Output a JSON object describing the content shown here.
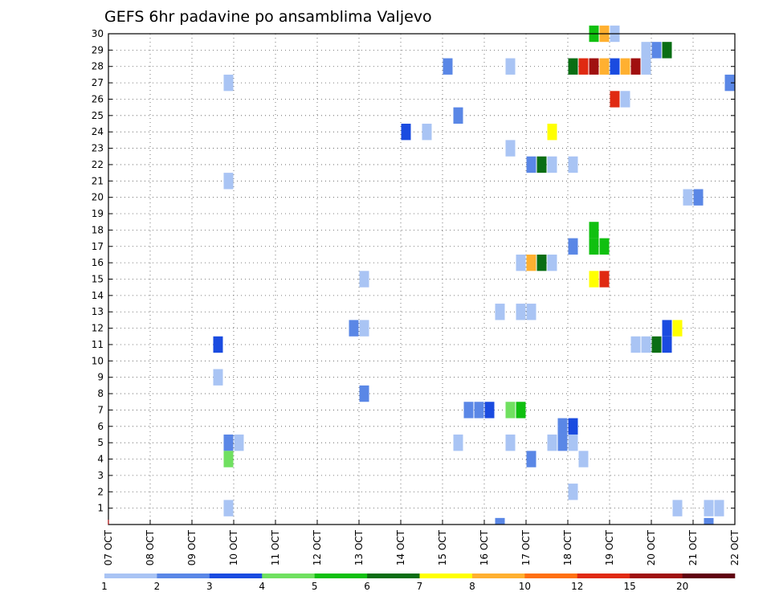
{
  "chart_data": {
    "type": "heatmap",
    "title": "GEFS 6hr padavine po ansamblima Valjevo",
    "x_tick_labels": [
      "07 OCT",
      "08 OCT",
      "09 OCT",
      "10 OCT",
      "11 OCT",
      "12 OCT",
      "13 OCT",
      "14 OCT",
      "15 OCT",
      "16 OCT",
      "17 OCT",
      "18 OCT",
      "19 OCT",
      "20 OCT",
      "21 OCT",
      "22 OCT"
    ],
    "x_range_days": [
      7,
      22
    ],
    "y_tick_labels": [
      "1",
      "2",
      "3",
      "4",
      "5",
      "6",
      "7",
      "8",
      "9",
      "10",
      "11",
      "12",
      "13",
      "14",
      "15",
      "16",
      "17",
      "18",
      "19",
      "20",
      "21",
      "22",
      "23",
      "24",
      "25",
      "26",
      "27",
      "28",
      "29",
      "30"
    ],
    "y_range": [
      0,
      30
    ],
    "grid": true,
    "colorbar": {
      "labels": [
        "1",
        "2",
        "3",
        "4",
        "5",
        "6",
        "7",
        "8",
        "10",
        "12",
        "15",
        "20"
      ],
      "colors": [
        "#a9c4f4",
        "#5a87e6",
        "#1a4be0",
        "#70e060",
        "#10c010",
        "#0a6e14",
        "#ffff00",
        "#ffb030",
        "#ff7010",
        "#e02a12",
        "#a01010",
        "#600010"
      ]
    },
    "cells_note": "each cell: [member, day_of_october (start of 6h step), color_index 1-12]",
    "cells": [
      [
        30,
        18.5,
        5
      ],
      [
        30,
        18.75,
        8
      ],
      [
        30,
        19.0,
        1
      ],
      [
        29,
        19.75,
        1
      ],
      [
        29,
        20.0,
        2
      ],
      [
        29,
        20.25,
        6
      ],
      [
        28,
        15.0,
        2
      ],
      [
        28,
        16.5,
        1
      ],
      [
        28,
        18.0,
        6
      ],
      [
        28,
        18.25,
        10
      ],
      [
        28,
        18.5,
        11
      ],
      [
        28,
        18.75,
        8
      ],
      [
        28,
        19.0,
        3
      ],
      [
        28,
        19.25,
        8
      ],
      [
        28,
        19.5,
        11
      ],
      [
        28,
        19.75,
        1
      ],
      [
        27,
        9.75,
        1
      ],
      [
        27,
        21.75,
        2
      ],
      [
        26,
        19.0,
        10
      ],
      [
        26,
        19.25,
        1
      ],
      [
        25,
        15.25,
        2
      ],
      [
        24,
        14.0,
        3
      ],
      [
        24,
        14.5,
        1
      ],
      [
        24,
        17.5,
        7
      ],
      [
        23,
        16.5,
        1
      ],
      [
        22,
        17.0,
        2
      ],
      [
        22,
        17.25,
        6
      ],
      [
        22,
        17.5,
        1
      ],
      [
        22,
        18.0,
        1
      ],
      [
        21,
        9.75,
        1
      ],
      [
        20,
        20.75,
        1
      ],
      [
        20,
        21.0,
        2
      ],
      [
        18,
        18.5,
        5
      ],
      [
        17,
        18.0,
        2
      ],
      [
        17,
        18.5,
        5
      ],
      [
        17,
        18.75,
        5
      ],
      [
        16,
        16.75,
        1
      ],
      [
        16,
        17.0,
        8
      ],
      [
        16,
        17.25,
        6
      ],
      [
        16,
        17.5,
        1
      ],
      [
        15,
        13.0,
        1
      ],
      [
        15,
        18.5,
        7
      ],
      [
        15,
        18.75,
        10
      ],
      [
        13,
        16.25,
        1
      ],
      [
        13,
        16.75,
        1
      ],
      [
        13,
        17.0,
        1
      ],
      [
        12,
        12.75,
        2
      ],
      [
        12,
        13.0,
        1
      ],
      [
        12,
        20.25,
        3
      ],
      [
        12,
        20.5,
        7
      ],
      [
        11,
        9.5,
        3
      ],
      [
        11,
        19.5,
        1
      ],
      [
        11,
        19.75,
        1
      ],
      [
        11,
        20.0,
        6
      ],
      [
        11,
        20.25,
        3
      ],
      [
        9,
        9.5,
        1
      ],
      [
        8,
        13.0,
        2
      ],
      [
        7,
        15.5,
        2
      ],
      [
        7,
        15.75,
        2
      ],
      [
        7,
        16.0,
        3
      ],
      [
        7,
        16.5,
        4
      ],
      [
        7,
        16.75,
        5
      ],
      [
        6,
        17.75,
        2
      ],
      [
        6,
        18.0,
        3
      ],
      [
        5,
        9.75,
        2
      ],
      [
        5,
        10.0,
        1
      ],
      [
        5,
        15.25,
        1
      ],
      [
        5,
        16.5,
        1
      ],
      [
        5,
        17.5,
        1
      ],
      [
        5,
        17.75,
        2
      ],
      [
        5,
        18.0,
        1
      ],
      [
        4,
        9.75,
        4
      ],
      [
        4,
        17.0,
        2
      ],
      [
        4,
        18.25,
        1
      ],
      [
        2,
        18.0,
        1
      ],
      [
        1,
        9.75,
        1
      ],
      [
        1,
        20.5,
        1
      ],
      [
        1,
        21.25,
        1
      ],
      [
        1,
        21.5,
        1
      ],
      [
        0,
        16.25,
        2
      ],
      [
        0,
        21.25,
        2
      ]
    ]
  }
}
